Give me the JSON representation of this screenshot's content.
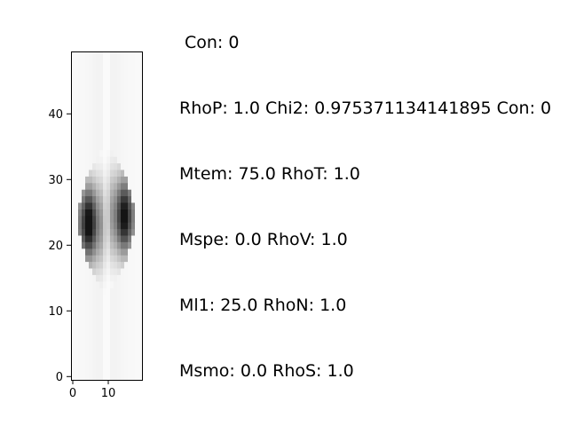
{
  "chart_data": {
    "type": "heatmap",
    "title": "Con: 0",
    "xlabel": "",
    "ylabel": "",
    "colormap": "gray_r",
    "origin": "lower",
    "xlim": [
      -0.5,
      19.5
    ],
    "ylim": [
      -0.5,
      49.5
    ],
    "x_ticks": [
      0,
      10
    ],
    "y_ticks": [
      0,
      10,
      20,
      30,
      40
    ],
    "x_tick_labels": [
      "0",
      "10"
    ],
    "y_tick_labels": [
      "0",
      "10",
      "20",
      "30",
      "40"
    ],
    "grid": false,
    "legend": "none",
    "annotations": [
      "RhoP: 1.0 Chi2: 0.975371134141895 Con: 0",
      "Mtem: 75.0 RhoT: 1.0",
      "Mspe: 0.0 RhoV: 1.0",
      "Ml1: 25.0 RhoN: 1.0",
      "Msmo: 0.0 RhoS: 1.0"
    ],
    "blob": {
      "center_row": 24,
      "rows": [
        13,
        36
      ],
      "core_rows": [
        17,
        31
      ],
      "left_lobe_cols": [
        2,
        7
      ],
      "right_lobe_cols": [
        11,
        15
      ],
      "center_col": 9.5,
      "peak_intensity": 0.92
    }
  }
}
